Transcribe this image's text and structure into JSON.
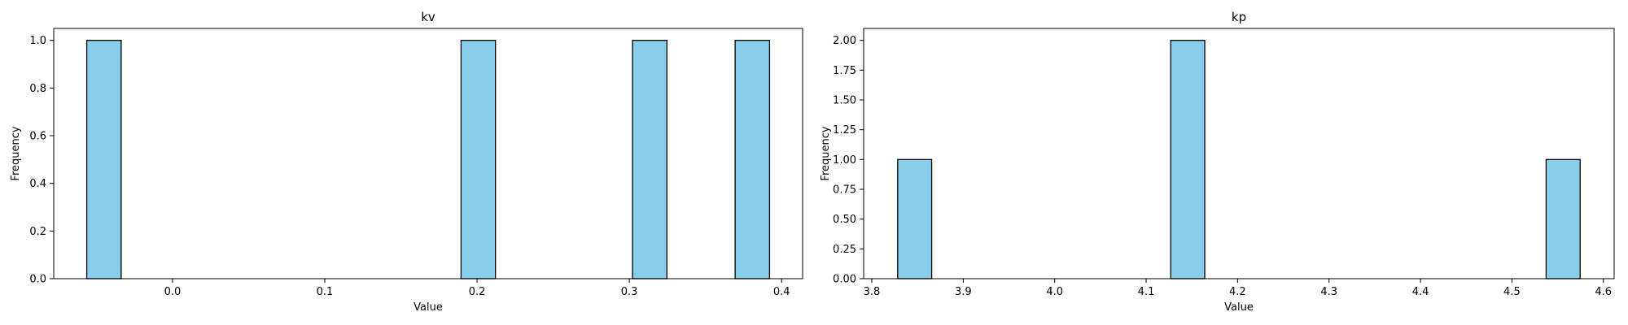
{
  "chart_data": [
    {
      "type": "bar",
      "title": "kv",
      "xlabel": "Value",
      "ylabel": "Frequency",
      "bars": [
        {
          "x0": -0.0563,
          "x1": -0.0337,
          "value": 1
        },
        {
          "x0": 0.1895,
          "x1": 0.2121,
          "value": 1
        },
        {
          "x0": 0.3021,
          "x1": 0.3247,
          "value": 1
        },
        {
          "x0": 0.3695,
          "x1": 0.3921,
          "value": 1
        }
      ],
      "xlim": [
        -0.078,
        0.4138
      ],
      "ylim": [
        0,
        1.05
      ],
      "xticks": [
        0.0,
        0.1,
        0.2,
        0.3,
        0.4
      ],
      "xtick_labels": [
        "0.0",
        "0.1",
        "0.2",
        "0.3",
        "0.4"
      ],
      "yticks": [
        0.0,
        0.2,
        0.4,
        0.6,
        0.8,
        1.0
      ],
      "ytick_labels": [
        "0.0",
        "0.2",
        "0.4",
        "0.6",
        "0.8",
        "1.0"
      ],
      "bar_color": "#87ceeb",
      "edge_color": "#000000",
      "grid": false
    },
    {
      "type": "bar",
      "title": "kp",
      "xlabel": "Value",
      "ylabel": "Frequency",
      "bars": [
        {
          "x0": 3.8283,
          "x1": 3.8655,
          "value": 1
        },
        {
          "x0": 4.1269,
          "x1": 4.1641,
          "value": 2
        },
        {
          "x0": 4.5374,
          "x1": 4.5746,
          "value": 1
        }
      ],
      "xlim": [
        3.7911,
        4.6118
      ],
      "ylim": [
        0,
        2.1
      ],
      "xticks": [
        3.8,
        3.9,
        4.0,
        4.1,
        4.2,
        4.3,
        4.4,
        4.5,
        4.6
      ],
      "xtick_labels": [
        "3.8",
        "3.9",
        "4.0",
        "4.1",
        "4.2",
        "4.3",
        "4.4",
        "4.5",
        "4.6"
      ],
      "yticks": [
        0.0,
        0.25,
        0.5,
        0.75,
        1.0,
        1.25,
        1.5,
        1.75,
        2.0
      ],
      "ytick_labels": [
        "0.00",
        "0.25",
        "0.50",
        "0.75",
        "1.00",
        "1.25",
        "1.50",
        "1.75",
        "2.00"
      ],
      "bar_color": "#87ceeb",
      "edge_color": "#000000",
      "grid": false
    }
  ]
}
